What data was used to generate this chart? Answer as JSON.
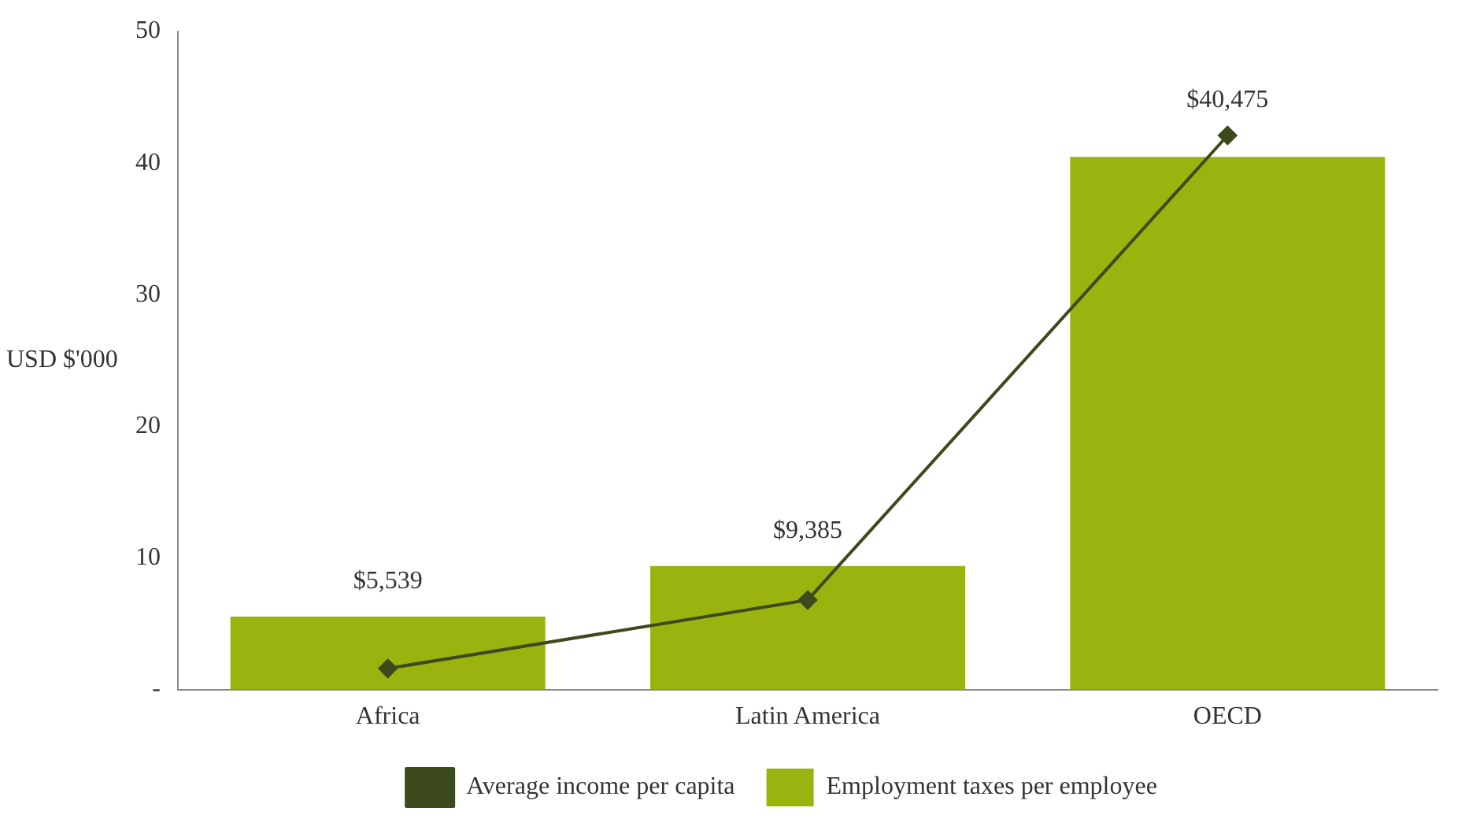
{
  "chart_data": {
    "type": "bar",
    "ylabel": "USD $'000",
    "categories": [
      "Africa",
      "Latin America",
      "OECD"
    ],
    "series": [
      {
        "name": "Employment taxes per employee",
        "color": "#9bb30f",
        "values": [
          5.539,
          9.385,
          40.475
        ]
      },
      {
        "name": "Average income per capita",
        "type": "line",
        "color": "#3d4a1c",
        "values": [
          1.6,
          6.8,
          42.1
        ],
        "marker": "diamond"
      }
    ],
    "annotations": [
      {
        "text": "$5,539",
        "x": "Africa",
        "y": 5.539
      },
      {
        "text": "$9,385",
        "x": "Latin America",
        "y": 9.385
      },
      {
        "text": "$40,475",
        "x": "OECD",
        "y": 42.1
      }
    ],
    "ylim": [
      0,
      50
    ],
    "yticks": [
      {
        "value": 0,
        "label": "-"
      },
      10,
      20,
      30,
      40,
      50
    ],
    "grid": false,
    "legend": "bottom"
  }
}
